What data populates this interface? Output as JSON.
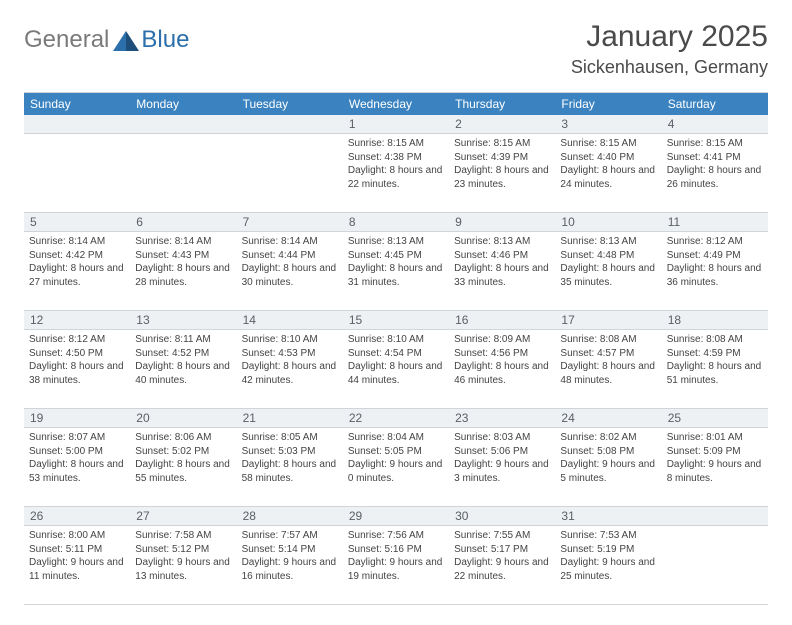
{
  "logo": {
    "gray": "General",
    "blue": "Blue"
  },
  "title": "January 2025",
  "location": "Sickenhausen, Germany",
  "colors": {
    "header_bg": "#3b83c0",
    "header_text": "#ffffff",
    "daynum_bg": "#eef1f4",
    "daynum_text": "#5a5f66",
    "border": "#d0d5da",
    "logo_gray": "#7a7a7a",
    "logo_blue": "#2b6fab"
  },
  "day_headers": [
    "Sunday",
    "Monday",
    "Tuesday",
    "Wednesday",
    "Thursday",
    "Friday",
    "Saturday"
  ],
  "weeks": [
    {
      "nums": [
        "",
        "",
        "",
        "1",
        "2",
        "3",
        "4"
      ],
      "cells": [
        null,
        null,
        null,
        {
          "sunrise": "8:15 AM",
          "sunset": "4:38 PM",
          "daylight": "8 hours and 22 minutes."
        },
        {
          "sunrise": "8:15 AM",
          "sunset": "4:39 PM",
          "daylight": "8 hours and 23 minutes."
        },
        {
          "sunrise": "8:15 AM",
          "sunset": "4:40 PM",
          "daylight": "8 hours and 24 minutes."
        },
        {
          "sunrise": "8:15 AM",
          "sunset": "4:41 PM",
          "daylight": "8 hours and 26 minutes."
        }
      ]
    },
    {
      "nums": [
        "5",
        "6",
        "7",
        "8",
        "9",
        "10",
        "11"
      ],
      "cells": [
        {
          "sunrise": "8:14 AM",
          "sunset": "4:42 PM",
          "daylight": "8 hours and 27 minutes."
        },
        {
          "sunrise": "8:14 AM",
          "sunset": "4:43 PM",
          "daylight": "8 hours and 28 minutes."
        },
        {
          "sunrise": "8:14 AM",
          "sunset": "4:44 PM",
          "daylight": "8 hours and 30 minutes."
        },
        {
          "sunrise": "8:13 AM",
          "sunset": "4:45 PM",
          "daylight": "8 hours and 31 minutes."
        },
        {
          "sunrise": "8:13 AM",
          "sunset": "4:46 PM",
          "daylight": "8 hours and 33 minutes."
        },
        {
          "sunrise": "8:13 AM",
          "sunset": "4:48 PM",
          "daylight": "8 hours and 35 minutes."
        },
        {
          "sunrise": "8:12 AM",
          "sunset": "4:49 PM",
          "daylight": "8 hours and 36 minutes."
        }
      ]
    },
    {
      "nums": [
        "12",
        "13",
        "14",
        "15",
        "16",
        "17",
        "18"
      ],
      "cells": [
        {
          "sunrise": "8:12 AM",
          "sunset": "4:50 PM",
          "daylight": "8 hours and 38 minutes."
        },
        {
          "sunrise": "8:11 AM",
          "sunset": "4:52 PM",
          "daylight": "8 hours and 40 minutes."
        },
        {
          "sunrise": "8:10 AM",
          "sunset": "4:53 PM",
          "daylight": "8 hours and 42 minutes."
        },
        {
          "sunrise": "8:10 AM",
          "sunset": "4:54 PM",
          "daylight": "8 hours and 44 minutes."
        },
        {
          "sunrise": "8:09 AM",
          "sunset": "4:56 PM",
          "daylight": "8 hours and 46 minutes."
        },
        {
          "sunrise": "8:08 AM",
          "sunset": "4:57 PM",
          "daylight": "8 hours and 48 minutes."
        },
        {
          "sunrise": "8:08 AM",
          "sunset": "4:59 PM",
          "daylight": "8 hours and 51 minutes."
        }
      ]
    },
    {
      "nums": [
        "19",
        "20",
        "21",
        "22",
        "23",
        "24",
        "25"
      ],
      "cells": [
        {
          "sunrise": "8:07 AM",
          "sunset": "5:00 PM",
          "daylight": "8 hours and 53 minutes."
        },
        {
          "sunrise": "8:06 AM",
          "sunset": "5:02 PM",
          "daylight": "8 hours and 55 minutes."
        },
        {
          "sunrise": "8:05 AM",
          "sunset": "5:03 PM",
          "daylight": "8 hours and 58 minutes."
        },
        {
          "sunrise": "8:04 AM",
          "sunset": "5:05 PM",
          "daylight": "9 hours and 0 minutes."
        },
        {
          "sunrise": "8:03 AM",
          "sunset": "5:06 PM",
          "daylight": "9 hours and 3 minutes."
        },
        {
          "sunrise": "8:02 AM",
          "sunset": "5:08 PM",
          "daylight": "9 hours and 5 minutes."
        },
        {
          "sunrise": "8:01 AM",
          "sunset": "5:09 PM",
          "daylight": "9 hours and 8 minutes."
        }
      ]
    },
    {
      "nums": [
        "26",
        "27",
        "28",
        "29",
        "30",
        "31",
        ""
      ],
      "cells": [
        {
          "sunrise": "8:00 AM",
          "sunset": "5:11 PM",
          "daylight": "9 hours and 11 minutes."
        },
        {
          "sunrise": "7:58 AM",
          "sunset": "5:12 PM",
          "daylight": "9 hours and 13 minutes."
        },
        {
          "sunrise": "7:57 AM",
          "sunset": "5:14 PM",
          "daylight": "9 hours and 16 minutes."
        },
        {
          "sunrise": "7:56 AM",
          "sunset": "5:16 PM",
          "daylight": "9 hours and 19 minutes."
        },
        {
          "sunrise": "7:55 AM",
          "sunset": "5:17 PM",
          "daylight": "9 hours and 22 minutes."
        },
        {
          "sunrise": "7:53 AM",
          "sunset": "5:19 PM",
          "daylight": "9 hours and 25 minutes."
        },
        null
      ]
    }
  ]
}
